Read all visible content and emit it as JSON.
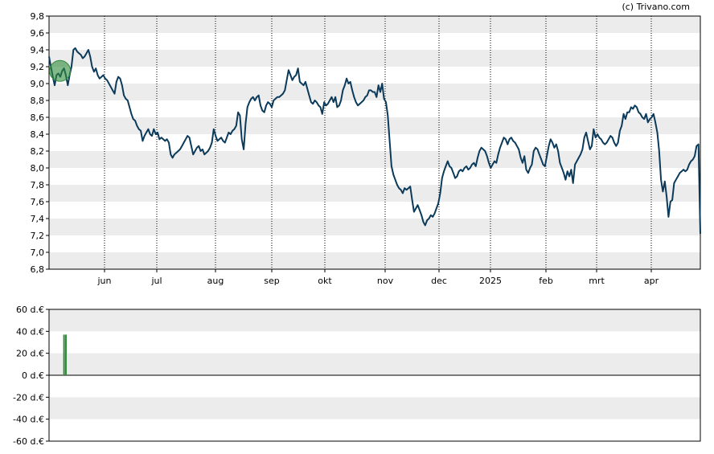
{
  "copyright": "(c) Trivano.com",
  "colors": {
    "line": "#0b3a5a",
    "band": "#ececec",
    "marker": "#2e8b3a",
    "bar": "#2e8b3a",
    "grid": "#000000"
  },
  "chart_data": [
    {
      "type": "line",
      "ylim": [
        6.8,
        9.8
      ],
      "y_ticks": [
        "6,8",
        "7,0",
        "7,2",
        "7,4",
        "7,6",
        "7,8",
        "8,0",
        "8,2",
        "8,4",
        "8,6",
        "8,8",
        "9,0",
        "9,2",
        "9,4",
        "9,6",
        "9,8"
      ],
      "x_ticks": [
        "jun",
        "jul",
        "aug",
        "sep",
        "okt",
        "nov",
        "dec",
        "2025",
        "feb",
        "mrt",
        "apr"
      ],
      "values": [
        9.32,
        9.2,
        9.08,
        8.98,
        9.1,
        9.12,
        9.08,
        9.15,
        9.18,
        9.1,
        8.98,
        9.1,
        9.2,
        9.4,
        9.42,
        9.38,
        9.36,
        9.34,
        9.3,
        9.32,
        9.36,
        9.4,
        9.32,
        9.2,
        9.14,
        9.18,
        9.1,
        9.06,
        9.08,
        9.1,
        9.06,
        9.04,
        9.0,
        8.96,
        8.92,
        8.88,
        9.02,
        9.08,
        9.06,
        8.98,
        8.86,
        8.82,
        8.8,
        8.72,
        8.64,
        8.58,
        8.56,
        8.5,
        8.46,
        8.44,
        8.32,
        8.38,
        8.42,
        8.46,
        8.4,
        8.38,
        8.46,
        8.4,
        8.42,
        8.34,
        8.36,
        8.34,
        8.32,
        8.34,
        8.3,
        8.16,
        8.12,
        8.16,
        8.18,
        8.2,
        8.22,
        8.26,
        8.3,
        8.34,
        8.38,
        8.36,
        8.26,
        8.16,
        8.2,
        8.24,
        8.26,
        8.2,
        8.22,
        8.16,
        8.18,
        8.2,
        8.24,
        8.3,
        8.46,
        8.38,
        8.32,
        8.34,
        8.36,
        8.32,
        8.3,
        8.36,
        8.42,
        8.4,
        8.44,
        8.46,
        8.5,
        8.66,
        8.62,
        8.34,
        8.22,
        8.52,
        8.72,
        8.78,
        8.82,
        8.84,
        8.8,
        8.84,
        8.86,
        8.74,
        8.68,
        8.66,
        8.74,
        8.78,
        8.76,
        8.72,
        8.8,
        8.82,
        8.84,
        8.84,
        8.86,
        8.88,
        8.92,
        9.04,
        9.16,
        9.1,
        9.04,
        9.08,
        9.1,
        9.18,
        9.02,
        9.0,
        8.98,
        9.02,
        8.94,
        8.86,
        8.78,
        8.76,
        8.8,
        8.78,
        8.74,
        8.72,
        8.64,
        8.78,
        8.74,
        8.76,
        8.8,
        8.84,
        8.78,
        8.84,
        8.72,
        8.74,
        8.8,
        8.92,
        8.98,
        9.06,
        9.0,
        9.02,
        8.92,
        8.84,
        8.78,
        8.74,
        8.76,
        8.78,
        8.8,
        8.84,
        8.86,
        8.92,
        8.92,
        8.9,
        8.9,
        8.84,
        8.98,
        8.9,
        9.0,
        8.82,
        8.78,
        8.62,
        8.32,
        8.02,
        7.92,
        7.86,
        7.8,
        7.76,
        7.74,
        7.7,
        7.76,
        7.74,
        7.76,
        7.78,
        7.62,
        7.48,
        7.52,
        7.56,
        7.5,
        7.44,
        7.36,
        7.32,
        7.38,
        7.4,
        7.44,
        7.42,
        7.46,
        7.52,
        7.58,
        7.7,
        7.88,
        7.96,
        8.02,
        8.08,
        8.02,
        8.0,
        7.94,
        7.88,
        7.9,
        7.96,
        7.98,
        7.96,
        8.0,
        8.02,
        7.98,
        8.0,
        8.04,
        8.06,
        8.02,
        8.12,
        8.2,
        8.24,
        8.22,
        8.2,
        8.14,
        8.06,
        8.0,
        8.04,
        8.08,
        8.06,
        8.16,
        8.24,
        8.3,
        8.36,
        8.34,
        8.28,
        8.34,
        8.36,
        8.32,
        8.3,
        8.26,
        8.22,
        8.12,
        8.06,
        8.14,
        7.98,
        7.94,
        8.0,
        8.04,
        8.2,
        8.24,
        8.22,
        8.16,
        8.1,
        8.04,
        8.02,
        8.14,
        8.26,
        8.34,
        8.3,
        8.24,
        8.28,
        8.2,
        8.06,
        8.0,
        7.94,
        7.86,
        7.96,
        7.9,
        7.98,
        7.82,
        8.04,
        8.08,
        8.12,
        8.16,
        8.22,
        8.36,
        8.42,
        8.32,
        8.22,
        8.26,
        8.46,
        8.36,
        8.4,
        8.36,
        8.34,
        8.3,
        8.28,
        8.3,
        8.34,
        8.38,
        8.36,
        8.3,
        8.26,
        8.3,
        8.44,
        8.5,
        8.64,
        8.58,
        8.66,
        8.66,
        8.72,
        8.7,
        8.74,
        8.72,
        8.66,
        8.64,
        8.6,
        8.58,
        8.64,
        8.54,
        8.58,
        8.6,
        8.64,
        8.54,
        8.42,
        8.2,
        7.86,
        7.72,
        7.84,
        7.66,
        7.42,
        7.6,
        7.62,
        7.82,
        7.86,
        7.9,
        7.94,
        7.96,
        7.98,
        7.96,
        7.98,
        8.04,
        8.08,
        8.1,
        8.14,
        8.26,
        8.28,
        7.22
      ],
      "marker": {
        "type": "buy",
        "x_index": 5,
        "value": 9.15
      }
    },
    {
      "type": "bar",
      "unit": "d.€",
      "ylim": [
        -60,
        60
      ],
      "y_ticks": [
        "60 d.€",
        "40 d.€",
        "20 d.€",
        "0 d.€",
        "-20 d.€",
        "-40 d.€",
        "-60 d.€"
      ],
      "bars": [
        {
          "x_index": 5,
          "value": 37
        },
        {
          "x_index": 6,
          "value": 37
        }
      ]
    }
  ]
}
